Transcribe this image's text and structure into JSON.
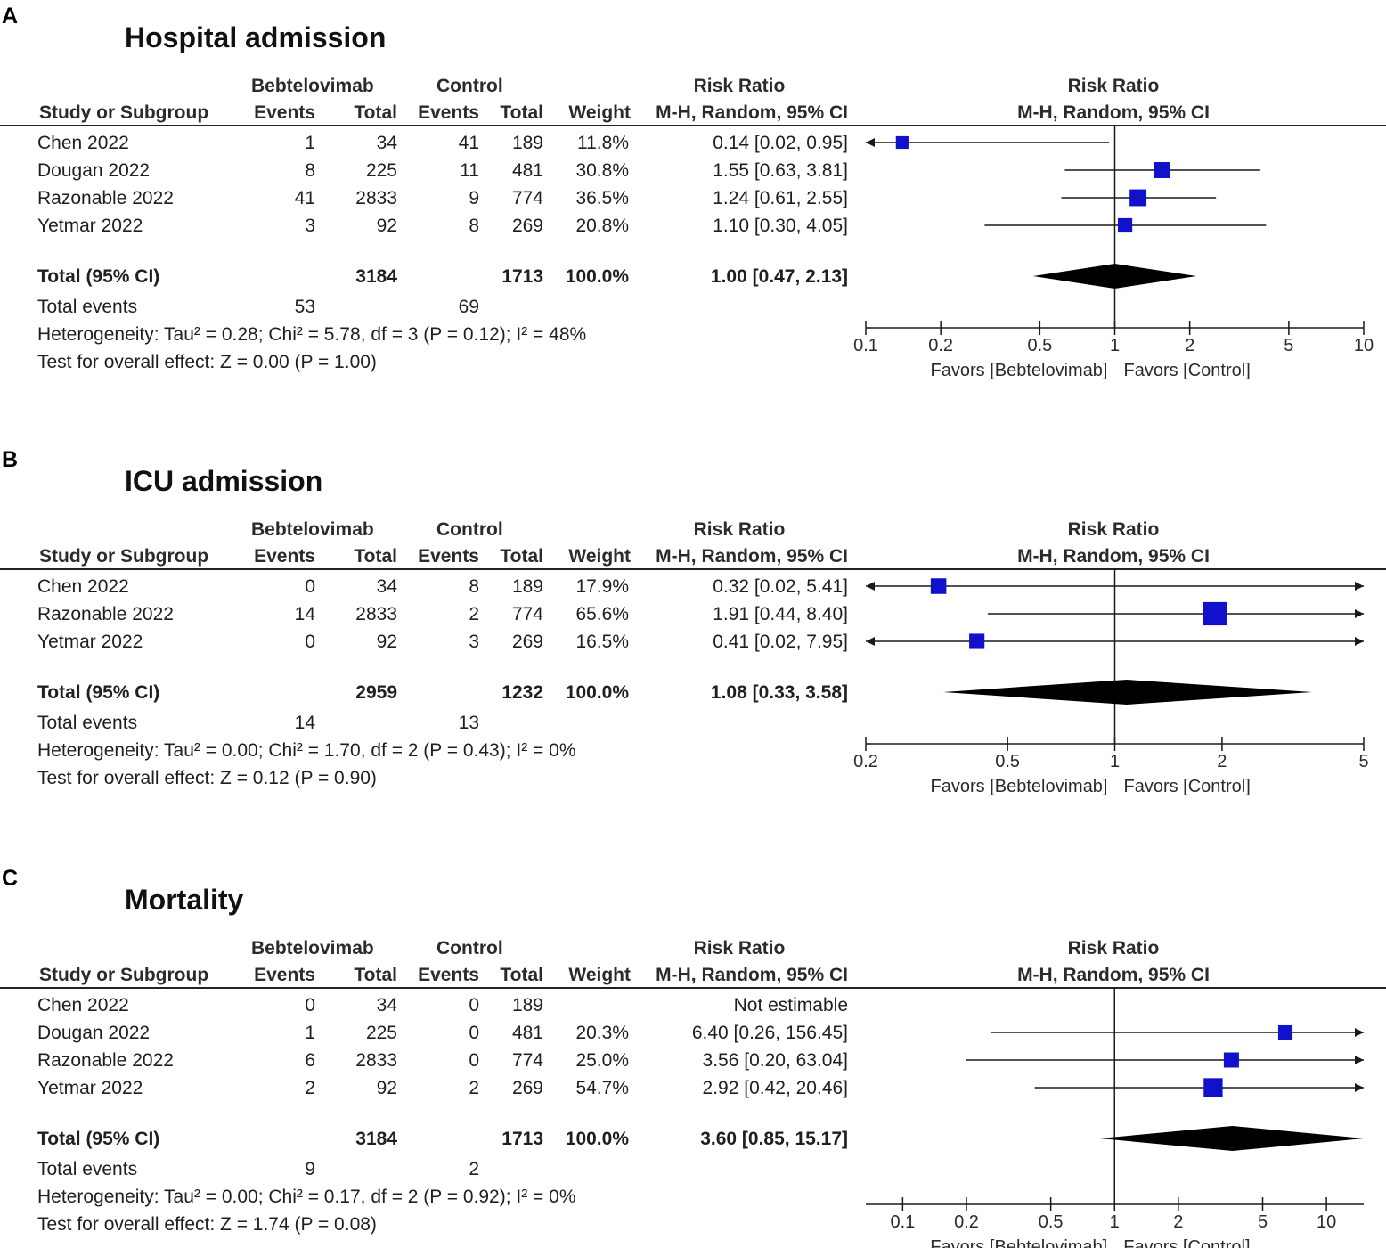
{
  "chart_data": [
    {
      "type": "forest",
      "panel_letter": "A",
      "title": "Hospital admission",
      "header": {
        "group1": "Bebtelovimab",
        "group2": "Control",
        "rr_top": "Risk Ratio",
        "rr_bottom": "M-H, Random, 95% CI",
        "plot_top": "Risk Ratio",
        "plot_bottom": "M-H, Random, 95% CI",
        "study": "Study or Subgroup",
        "events": "Events",
        "total": "Total",
        "weight": "Weight"
      },
      "studies": [
        {
          "name": "Chen 2022",
          "e1": "1",
          "t1": "34",
          "e2": "41",
          "t2": "189",
          "weight": "11.8%",
          "rr_text": "0.14 [0.02, 0.95]",
          "rr": 0.14,
          "lo": 0.02,
          "hi": 0.95,
          "w": 11.8
        },
        {
          "name": "Dougan 2022",
          "e1": "8",
          "t1": "225",
          "e2": "11",
          "t2": "481",
          "weight": "30.8%",
          "rr_text": "1.55 [0.63, 3.81]",
          "rr": 1.55,
          "lo": 0.63,
          "hi": 3.81,
          "w": 30.8
        },
        {
          "name": "Razonable 2022",
          "e1": "41",
          "t1": "2833",
          "e2": "9",
          "t2": "774",
          "weight": "36.5%",
          "rr_text": "1.24 [0.61, 2.55]",
          "rr": 1.24,
          "lo": 0.61,
          "hi": 2.55,
          "w": 36.5
        },
        {
          "name": "Yetmar 2022",
          "e1": "3",
          "t1": "92",
          "e2": "8",
          "t2": "269",
          "weight": "20.8%",
          "rr_text": "1.10 [0.30, 4.05]",
          "rr": 1.1,
          "lo": 0.3,
          "hi": 4.05,
          "w": 20.8
        }
      ],
      "total": {
        "label": "Total (95% CI)",
        "t1": "3184",
        "t2": "1713",
        "weight": "100.0%",
        "rr_text": "1.00 [0.47, 2.13]",
        "rr": 1.0,
        "lo": 0.47,
        "hi": 2.13
      },
      "total_events": {
        "label": "Total events",
        "e1": "53",
        "e2": "69"
      },
      "heterogeneity": "Heterogeneity: Tau² = 0.28; Chi² = 5.78, df = 3 (P = 0.12); I² = 48%",
      "overall_effect": "Test for overall effect: Z = 0.00 (P = 1.00)",
      "axis": {
        "min": 0.1,
        "max": 10,
        "ticks": [
          0.1,
          0.2,
          0.5,
          1,
          2,
          5,
          10
        ],
        "tick_labels": [
          "0.1",
          "0.2",
          "0.5",
          "1",
          "2",
          "5",
          "10"
        ]
      },
      "favors_left": "Favors [Bebtelovimab]",
      "favors_right": "Favors [Control]"
    },
    {
      "type": "forest",
      "panel_letter": "B",
      "title": "ICU admission",
      "header": {
        "group1": "Bebtelovimab",
        "group2": "Control",
        "rr_top": "Risk Ratio",
        "rr_bottom": "M-H, Random, 95% CI",
        "plot_top": "Risk Ratio",
        "plot_bottom": "M-H, Random, 95% CI",
        "study": "Study or Subgroup",
        "events": "Events",
        "total": "Total",
        "weight": "Weight"
      },
      "studies": [
        {
          "name": "Chen 2022",
          "e1": "0",
          "t1": "34",
          "e2": "8",
          "t2": "189",
          "weight": "17.9%",
          "rr_text": "0.32 [0.02, 5.41]",
          "rr": 0.32,
          "lo": 0.02,
          "hi": 5.41,
          "w": 17.9
        },
        {
          "name": "Razonable 2022",
          "e1": "14",
          "t1": "2833",
          "e2": "2",
          "t2": "774",
          "weight": "65.6%",
          "rr_text": "1.91 [0.44, 8.40]",
          "rr": 1.91,
          "lo": 0.44,
          "hi": 8.4,
          "w": 65.6
        },
        {
          "name": "Yetmar 2022",
          "e1": "0",
          "t1": "92",
          "e2": "3",
          "t2": "269",
          "weight": "16.5%",
          "rr_text": "0.41 [0.02, 7.95]",
          "rr": 0.41,
          "lo": 0.02,
          "hi": 7.95,
          "w": 16.5
        }
      ],
      "total": {
        "label": "Total (95% CI)",
        "t1": "2959",
        "t2": "1232",
        "weight": "100.0%",
        "rr_text": "1.08 [0.33, 3.58]",
        "rr": 1.08,
        "lo": 0.33,
        "hi": 3.58
      },
      "total_events": {
        "label": "Total events",
        "e1": "14",
        "e2": "13"
      },
      "heterogeneity": "Heterogeneity: Tau² = 0.00; Chi² = 1.70, df = 2 (P = 0.43); I² = 0%",
      "overall_effect": "Test for overall effect: Z = 0.12 (P = 0.90)",
      "axis": {
        "min": 0.2,
        "max": 5,
        "ticks": [
          0.2,
          0.5,
          1,
          2,
          5
        ],
        "tick_labels": [
          "0.2",
          "0.5",
          "1",
          "2",
          "5"
        ]
      },
      "favors_left": "Favors [Bebtelovimab]",
      "favors_right": "Favors [Control]"
    },
    {
      "type": "forest",
      "panel_letter": "C",
      "title": "Mortality",
      "header": {
        "group1": "Bebtelovimab",
        "group2": "Control",
        "rr_top": "Risk Ratio",
        "rr_bottom": "M-H, Random, 95% CI",
        "plot_top": "Risk Ratio",
        "plot_bottom": "M-H, Random, 95% CI",
        "study": "Study or Subgroup",
        "events": "Events",
        "total": "Total",
        "weight": "Weight"
      },
      "studies": [
        {
          "name": "Chen 2022",
          "e1": "0",
          "t1": "34",
          "e2": "0",
          "t2": "189",
          "weight": "",
          "rr_text": "Not estimable",
          "rr": null,
          "lo": null,
          "hi": null,
          "w": 0
        },
        {
          "name": "Dougan 2022",
          "e1": "1",
          "t1": "225",
          "e2": "0",
          "t2": "481",
          "weight": "20.3%",
          "rr_text": "6.40 [0.26, 156.45]",
          "rr": 6.4,
          "lo": 0.26,
          "hi": 156.45,
          "w": 20.3
        },
        {
          "name": "Razonable 2022",
          "e1": "6",
          "t1": "2833",
          "e2": "0",
          "t2": "774",
          "weight": "25.0%",
          "rr_text": "3.56 [0.20, 63.04]",
          "rr": 3.56,
          "lo": 0.2,
          "hi": 63.04,
          "w": 25.0
        },
        {
          "name": "Yetmar 2022",
          "e1": "2",
          "t1": "92",
          "e2": "2",
          "t2": "269",
          "weight": "54.7%",
          "rr_text": "2.92 [0.42, 20.46]",
          "rr": 2.92,
          "lo": 0.42,
          "hi": 20.46,
          "w": 54.7
        }
      ],
      "total": {
        "label": "Total (95% CI)",
        "t1": "3184",
        "t2": "1713",
        "weight": "100.0%",
        "rr_text": "3.60 [0.85, 15.17]",
        "rr": 3.6,
        "lo": 0.85,
        "hi": 15.17
      },
      "total_events": {
        "label": "Total events",
        "e1": "9",
        "e2": "2"
      },
      "heterogeneity": "Heterogeneity: Tau² = 0.00; Chi² = 0.17, df = 2 (P = 0.92); I² = 0%",
      "overall_effect": "Test for overall effect: Z = 1.74 (P = 0.08)",
      "axis": {
        "min": 0.067,
        "max": 15,
        "ticks": [
          0.1,
          0.2,
          0.5,
          1,
          2,
          5,
          10
        ],
        "tick_labels": [
          "0.1",
          "0.2",
          "0.5",
          "1",
          "2",
          "5",
          "10"
        ]
      },
      "favors_left": "Favors [Bebtelovimab]",
      "favors_right": "Favors [Control]"
    }
  ],
  "colors": {
    "marker": "#1111cc",
    "line": "#1a1a1a",
    "diamond": "#000000"
  }
}
